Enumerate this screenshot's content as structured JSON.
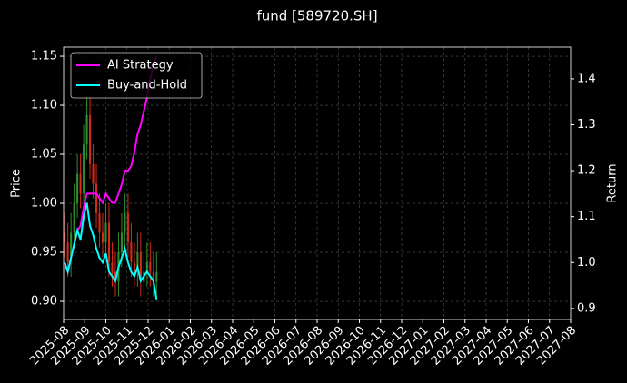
{
  "chart_data": {
    "type": "candlestick",
    "title": "fund [589720.SH]",
    "ylabel": "Price",
    "y2label": "Return",
    "x": [
      0.05,
      0.2,
      0.35,
      0.5,
      0.65,
      0.8,
      0.95,
      1.1,
      1.25,
      1.4,
      1.55,
      1.7,
      1.85,
      2.0,
      2.15,
      2.3,
      2.45,
      2.6,
      2.75,
      2.9,
      3.05,
      3.2,
      3.35,
      3.5,
      3.65,
      3.8,
      3.95,
      4.1,
      4.25,
      4.4
    ],
    "open": [
      0.97,
      0.96,
      0.94,
      0.97,
      1.0,
      1.03,
      1.01,
      1.06,
      1.09,
      1.04,
      1.02,
      0.99,
      0.97,
      0.96,
      0.98,
      0.94,
      0.93,
      0.92,
      0.95,
      0.97,
      0.99,
      0.96,
      0.94,
      0.93,
      0.95,
      0.92,
      0.93,
      0.94,
      0.93,
      0.92
    ],
    "high": [
      0.99,
      0.98,
      0.99,
      1.02,
      1.05,
      1.05,
      1.08,
      1.11,
      1.11,
      1.06,
      1.04,
      1.01,
      0.99,
      1.0,
      1.0,
      0.96,
      0.95,
      0.97,
      0.99,
      1.01,
      1.01,
      0.98,
      0.96,
      0.97,
      0.97,
      0.95,
      0.96,
      0.96,
      0.95,
      0.95
    ],
    "low": [
      0.945,
      0.925,
      0.925,
      0.955,
      0.985,
      0.995,
      0.995,
      1.045,
      1.025,
      1.005,
      0.975,
      0.955,
      0.945,
      0.945,
      0.925,
      0.915,
      0.905,
      0.905,
      0.935,
      0.955,
      0.945,
      0.925,
      0.915,
      0.915,
      0.905,
      0.905,
      0.915,
      0.915,
      0.905,
      0.905
    ],
    "close": [
      0.96,
      0.94,
      0.97,
      1.0,
      1.03,
      1.01,
      1.06,
      1.09,
      1.04,
      1.02,
      0.99,
      0.97,
      0.96,
      0.98,
      0.94,
      0.93,
      0.92,
      0.95,
      0.97,
      0.99,
      0.96,
      0.94,
      0.93,
      0.95,
      0.92,
      0.93,
      0.94,
      0.93,
      0.92,
      0.93
    ],
    "up_color": "#2e8b2e",
    "down_color": "#d42a1a",
    "series": [
      {
        "name": "AI Strategy",
        "color": "#ff00ff",
        "axis": "y2",
        "values": [
          1.0,
          0.98,
          1.01,
          1.04,
          1.07,
          1.08,
          1.12,
          1.15,
          1.15,
          1.15,
          1.15,
          1.14,
          1.13,
          1.15,
          1.14,
          1.13,
          1.13,
          1.15,
          1.17,
          1.2,
          1.2,
          1.21,
          1.24,
          1.28,
          1.3,
          1.33,
          1.36,
          1.4,
          1.43,
          1.45
        ]
      },
      {
        "name": "Buy-and-Hold",
        "color": "#00ffff",
        "axis": "y2",
        "values": [
          1.0,
          0.98,
          1.01,
          1.04,
          1.07,
          1.05,
          1.1,
          1.13,
          1.08,
          1.06,
          1.03,
          1.01,
          1.0,
          1.02,
          0.98,
          0.97,
          0.96,
          0.99,
          1.01,
          1.03,
          1.0,
          0.98,
          0.97,
          0.99,
          0.96,
          0.97,
          0.98,
          0.97,
          0.96,
          0.92
        ]
      }
    ],
    "xlim": [
      0,
      24
    ],
    "xticks": [
      {
        "value": 0,
        "label": "2025-08"
      },
      {
        "value": 1,
        "label": "2025-09"
      },
      {
        "value": 2,
        "label": "2025-10"
      },
      {
        "value": 3,
        "label": "2025-11"
      },
      {
        "value": 4,
        "label": "2025-12"
      },
      {
        "value": 5,
        "label": "2026-01"
      },
      {
        "value": 6,
        "label": "2026-02"
      },
      {
        "value": 7,
        "label": "2026-03"
      },
      {
        "value": 8,
        "label": "2026-04"
      },
      {
        "value": 9,
        "label": "2026-05"
      },
      {
        "value": 10,
        "label": "2026-06"
      },
      {
        "value": 11,
        "label": "2026-07"
      },
      {
        "value": 12,
        "label": "2026-08"
      },
      {
        "value": 13,
        "label": "2026-09"
      },
      {
        "value": 14,
        "label": "2026-10"
      },
      {
        "value": 15,
        "label": "2026-11"
      },
      {
        "value": 16,
        "label": "2026-12"
      },
      {
        "value": 17,
        "label": "2027-01"
      },
      {
        "value": 18,
        "label": "2027-02"
      },
      {
        "value": 19,
        "label": "2027-03"
      },
      {
        "value": 20,
        "label": "2027-04"
      },
      {
        "value": 21,
        "label": "2027-05"
      },
      {
        "value": 22,
        "label": "2027-06"
      },
      {
        "value": 23,
        "label": "2027-07"
      },
      {
        "value": 24,
        "label": "2027-08"
      }
    ],
    "ylim": [
      0.8815,
      1.1593
    ],
    "yticks": [
      {
        "value": 0.9,
        "label": "0.90"
      },
      {
        "value": 0.95,
        "label": "0.95"
      },
      {
        "value": 1.0,
        "label": "1.00"
      },
      {
        "value": 1.05,
        "label": "1.05"
      },
      {
        "value": 1.1,
        "label": "1.10"
      },
      {
        "value": 1.15,
        "label": "1.15"
      }
    ],
    "y2lim": [
      0.876,
      1.469
    ],
    "y2ticks": [
      0.9,
      {
        "value": 1.0,
        "label": "1.0"
      },
      1.1,
      1.2,
      1.3,
      1.4
    ],
    "grid": true,
    "legend": "upper left"
  }
}
